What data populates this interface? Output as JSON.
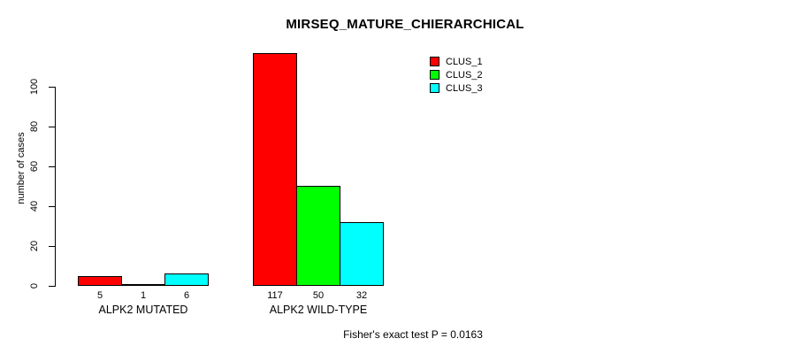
{
  "chart_data": {
    "type": "bar",
    "title": "MIRSEQ_MATURE_CHIERARCHICAL",
    "ylabel": "number of cases",
    "xlabel": "",
    "categories": [
      "ALPK2 MUTATED",
      "ALPK2 WILD-TYPE"
    ],
    "series": [
      {
        "name": "CLUS_1",
        "color": "#ff0000",
        "values": [
          5,
          117
        ]
      },
      {
        "name": "CLUS_2",
        "color": "#00ff00",
        "values": [
          1,
          50
        ]
      },
      {
        "name": "CLUS_3",
        "color": "#00ffff",
        "values": [
          6,
          32
        ]
      }
    ],
    "bar_value_labels_shown": true,
    "y_ticks": [
      0,
      20,
      40,
      60,
      80,
      100
    ],
    "ylim": [
      0,
      117
    ],
    "grid": false,
    "legend_position": "top-right-inside",
    "annotation": "Fisher's exact test P = 0.0163",
    "colors": {
      "background": "#ffffff",
      "text": "#000000",
      "bar_border": "#000000",
      "axis": "#000000"
    }
  }
}
